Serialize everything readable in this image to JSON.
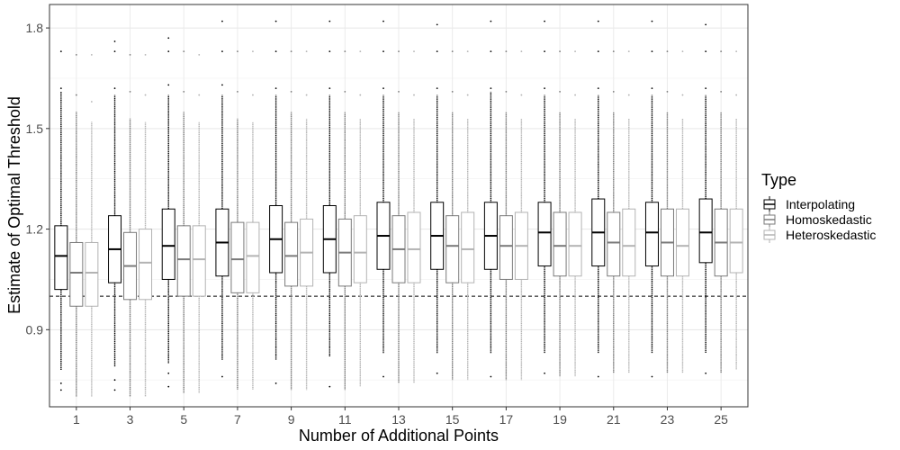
{
  "chart_data": {
    "type": "boxplot",
    "xlabel": "Number of Additional Points",
    "ylabel": "Estimate of Optimal Threshold",
    "categories": [
      "1",
      "3",
      "5",
      "7",
      "9",
      "11",
      "13",
      "15",
      "17",
      "19",
      "21",
      "23",
      "25"
    ],
    "ylim": [
      0.67,
      1.87
    ],
    "yticks": [
      0.9,
      1.2,
      1.5,
      1.8
    ],
    "ytick_labels": [
      "0.9",
      "1.2",
      "1.5",
      "1.8"
    ],
    "reference_line": {
      "y": 1.0,
      "style": "dashed"
    },
    "grid": true,
    "legend": {
      "title": "Type",
      "position": "right"
    },
    "series": [
      {
        "name": "Interpolating",
        "color": "#000000",
        "boxes": [
          {
            "q1": 1.02,
            "median": 1.12,
            "q3": 1.21,
            "whisker_low": 0.78,
            "whisker_high": 1.61,
            "outliers": [
              0.72,
              0.74,
              1.62,
              1.73
            ]
          },
          {
            "q1": 1.04,
            "median": 1.14,
            "q3": 1.24,
            "whisker_low": 0.79,
            "whisker_high": 1.6,
            "outliers": [
              0.72,
              0.75,
              1.62,
              1.73,
              1.76
            ]
          },
          {
            "q1": 1.05,
            "median": 1.15,
            "q3": 1.26,
            "whisker_low": 0.8,
            "whisker_high": 1.6,
            "outliers": [
              0.73,
              0.77,
              1.63,
              1.73,
              1.77
            ]
          },
          {
            "q1": 1.06,
            "median": 1.16,
            "q3": 1.26,
            "whisker_low": 0.81,
            "whisker_high": 1.6,
            "outliers": [
              0.76,
              1.63,
              1.73,
              1.82
            ]
          },
          {
            "q1": 1.07,
            "median": 1.17,
            "q3": 1.27,
            "whisker_low": 0.81,
            "whisker_high": 1.6,
            "outliers": [
              0.74,
              1.62,
              1.73,
              1.82
            ]
          },
          {
            "q1": 1.07,
            "median": 1.17,
            "q3": 1.27,
            "whisker_low": 0.82,
            "whisker_high": 1.6,
            "outliers": [
              0.73,
              1.62,
              1.73,
              1.82
            ]
          },
          {
            "q1": 1.08,
            "median": 1.18,
            "q3": 1.28,
            "whisker_low": 0.83,
            "whisker_high": 1.6,
            "outliers": [
              0.76,
              1.62,
              1.73,
              1.82
            ]
          },
          {
            "q1": 1.08,
            "median": 1.18,
            "q3": 1.28,
            "whisker_low": 0.83,
            "whisker_high": 1.6,
            "outliers": [
              0.77,
              1.62,
              1.73,
              1.81
            ]
          },
          {
            "q1": 1.08,
            "median": 1.18,
            "q3": 1.28,
            "whisker_low": 0.83,
            "whisker_high": 1.61,
            "outliers": [
              0.76,
              1.62,
              1.73,
              1.82
            ]
          },
          {
            "q1": 1.09,
            "median": 1.19,
            "q3": 1.28,
            "whisker_low": 0.83,
            "whisker_high": 1.6,
            "outliers": [
              0.77,
              1.62,
              1.73,
              1.82
            ]
          },
          {
            "q1": 1.09,
            "median": 1.19,
            "q3": 1.29,
            "whisker_low": 0.83,
            "whisker_high": 1.6,
            "outliers": [
              0.76,
              1.62,
              1.73,
              1.82
            ]
          },
          {
            "q1": 1.09,
            "median": 1.19,
            "q3": 1.28,
            "whisker_low": 0.83,
            "whisker_high": 1.6,
            "outliers": [
              0.76,
              1.62,
              1.73,
              1.82
            ]
          },
          {
            "q1": 1.1,
            "median": 1.19,
            "q3": 1.29,
            "whisker_low": 0.83,
            "whisker_high": 1.6,
            "outliers": [
              0.77,
              1.62,
              1.73,
              1.81
            ]
          }
        ]
      },
      {
        "name": "Homoskedastic",
        "color": "#7a7a7a",
        "boxes": [
          {
            "q1": 0.97,
            "median": 1.07,
            "q3": 1.16,
            "whisker_low": 0.7,
            "whisker_high": 1.55,
            "outliers": [
              1.6,
              1.72
            ]
          },
          {
            "q1": 0.99,
            "median": 1.09,
            "q3": 1.19,
            "whisker_low": 0.7,
            "whisker_high": 1.53,
            "outliers": [
              1.61,
              1.72
            ]
          },
          {
            "q1": 1.0,
            "median": 1.11,
            "q3": 1.21,
            "whisker_low": 0.71,
            "whisker_high": 1.55,
            "outliers": [
              1.61,
              1.73
            ]
          },
          {
            "q1": 1.01,
            "median": 1.11,
            "q3": 1.22,
            "whisker_low": 0.72,
            "whisker_high": 1.53,
            "outliers": [
              1.61,
              1.73
            ]
          },
          {
            "q1": 1.03,
            "median": 1.12,
            "q3": 1.22,
            "whisker_low": 0.72,
            "whisker_high": 1.55,
            "outliers": [
              1.61,
              1.73
            ]
          },
          {
            "q1": 1.03,
            "median": 1.13,
            "q3": 1.23,
            "whisker_low": 0.72,
            "whisker_high": 1.55,
            "outliers": [
              1.61,
              1.73
            ]
          },
          {
            "q1": 1.04,
            "median": 1.14,
            "q3": 1.24,
            "whisker_low": 0.74,
            "whisker_high": 1.55,
            "outliers": [
              1.61,
              1.73
            ]
          },
          {
            "q1": 1.04,
            "median": 1.15,
            "q3": 1.24,
            "whisker_low": 0.75,
            "whisker_high": 1.55,
            "outliers": [
              1.61,
              1.73
            ]
          },
          {
            "q1": 1.05,
            "median": 1.15,
            "q3": 1.24,
            "whisker_low": 0.75,
            "whisker_high": 1.55,
            "outliers": [
              1.61,
              1.73
            ]
          },
          {
            "q1": 1.06,
            "median": 1.15,
            "q3": 1.25,
            "whisker_low": 0.76,
            "whisker_high": 1.55,
            "outliers": [
              1.61,
              1.73
            ]
          },
          {
            "q1": 1.06,
            "median": 1.16,
            "q3": 1.25,
            "whisker_low": 0.77,
            "whisker_high": 1.55,
            "outliers": [
              1.61,
              1.73
            ]
          },
          {
            "q1": 1.06,
            "median": 1.16,
            "q3": 1.26,
            "whisker_low": 0.77,
            "whisker_high": 1.55,
            "outliers": [
              1.61,
              1.73
            ]
          },
          {
            "q1": 1.06,
            "median": 1.16,
            "q3": 1.26,
            "whisker_low": 0.77,
            "whisker_high": 1.55,
            "outliers": [
              1.61,
              1.73
            ]
          }
        ]
      },
      {
        "name": "Heteroskedastic",
        "color": "#b3b3b3",
        "boxes": [
          {
            "q1": 0.97,
            "median": 1.07,
            "q3": 1.16,
            "whisker_low": 0.7,
            "whisker_high": 1.52,
            "outliers": [
              1.58,
              1.72
            ]
          },
          {
            "q1": 0.99,
            "median": 1.1,
            "q3": 1.2,
            "whisker_low": 0.7,
            "whisker_high": 1.52,
            "outliers": [
              1.6,
              1.72
            ]
          },
          {
            "q1": 1.0,
            "median": 1.11,
            "q3": 1.21,
            "whisker_low": 0.71,
            "whisker_high": 1.52,
            "outliers": [
              1.6,
              1.72
            ]
          },
          {
            "q1": 1.01,
            "median": 1.12,
            "q3": 1.22,
            "whisker_low": 0.72,
            "whisker_high": 1.52,
            "outliers": [
              1.6,
              1.73
            ]
          },
          {
            "q1": 1.03,
            "median": 1.13,
            "q3": 1.23,
            "whisker_low": 0.72,
            "whisker_high": 1.53,
            "outliers": [
              1.6,
              1.73
            ]
          },
          {
            "q1": 1.04,
            "median": 1.13,
            "q3": 1.24,
            "whisker_low": 0.73,
            "whisker_high": 1.53,
            "outliers": [
              1.6,
              1.73
            ]
          },
          {
            "q1": 1.04,
            "median": 1.14,
            "q3": 1.25,
            "whisker_low": 0.74,
            "whisker_high": 1.53,
            "outliers": [
              1.6,
              1.73
            ]
          },
          {
            "q1": 1.04,
            "median": 1.14,
            "q3": 1.25,
            "whisker_low": 0.75,
            "whisker_high": 1.53,
            "outliers": [
              1.6,
              1.73
            ]
          },
          {
            "q1": 1.05,
            "median": 1.15,
            "q3": 1.25,
            "whisker_low": 0.75,
            "whisker_high": 1.53,
            "outliers": [
              1.6,
              1.73
            ]
          },
          {
            "q1": 1.06,
            "median": 1.15,
            "q3": 1.25,
            "whisker_low": 0.76,
            "whisker_high": 1.53,
            "outliers": [
              1.6,
              1.73
            ]
          },
          {
            "q1": 1.06,
            "median": 1.15,
            "q3": 1.26,
            "whisker_low": 0.77,
            "whisker_high": 1.53,
            "outliers": [
              1.6,
              1.73
            ]
          },
          {
            "q1": 1.06,
            "median": 1.15,
            "q3": 1.26,
            "whisker_low": 0.77,
            "whisker_high": 1.53,
            "outliers": [
              1.6,
              1.73
            ]
          },
          {
            "q1": 1.07,
            "median": 1.16,
            "q3": 1.26,
            "whisker_low": 0.78,
            "whisker_high": 1.53,
            "outliers": [
              1.6,
              1.73
            ]
          }
        ]
      }
    ]
  }
}
